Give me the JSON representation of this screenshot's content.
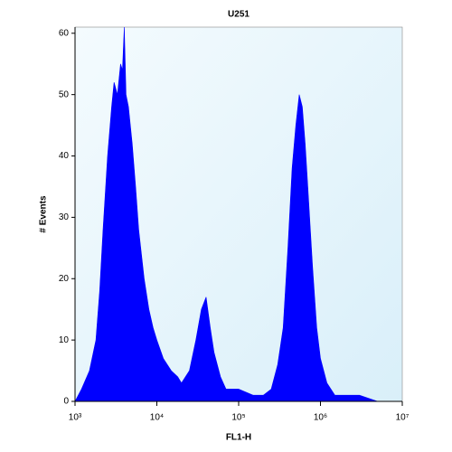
{
  "chart_data": {
    "type": "area",
    "title": "U251",
    "xlabel": "FL1-H",
    "ylabel": "# Events",
    "xlog": true,
    "color": "#0000ff",
    "x": [
      1000,
      1200,
      1500,
      1800,
      2000,
      2200,
      2500,
      2800,
      3000,
      3300,
      3600,
      3800,
      4000,
      4200,
      4500,
      5000,
      5500,
      6000,
      7000,
      8000,
      9000,
      10000,
      12000,
      15000,
      18000,
      20000,
      25000,
      30000,
      35000,
      40000,
      45000,
      50000,
      60000,
      70000,
      80000,
      100000,
      150000,
      200000,
      250000,
      300000,
      350000,
      400000,
      450000,
      500000,
      550000,
      600000,
      650000,
      700000,
      800000,
      900000,
      1000000,
      1200000,
      1500000,
      2000000,
      3000000,
      5000000,
      10000000
    ],
    "values": [
      0,
      2,
      5,
      10,
      18,
      28,
      40,
      48,
      52,
      50,
      55,
      54,
      61,
      50,
      48,
      42,
      35,
      28,
      20,
      15,
      12,
      10,
      7,
      5,
      4,
      3,
      5,
      10,
      15,
      17,
      12,
      8,
      4,
      2,
      2,
      2,
      1,
      1,
      2,
      6,
      12,
      25,
      38,
      45,
      50,
      48,
      42,
      35,
      22,
      12,
      7,
      3,
      1,
      1,
      1,
      0,
      0
    ],
    "xlim": [
      1000,
      10000000
    ],
    "ylim": [
      0,
      61
    ],
    "xticks": [
      {
        "value": 1000,
        "label": "10³"
      },
      {
        "value": 10000,
        "label": "10⁴"
      },
      {
        "value": 100000,
        "label": "10⁵"
      },
      {
        "value": 1000000,
        "label": "10⁶"
      },
      {
        "value": 10000000,
        "label": "10⁷"
      }
    ],
    "yticks": [
      0,
      10,
      20,
      30,
      40,
      50,
      60
    ]
  }
}
